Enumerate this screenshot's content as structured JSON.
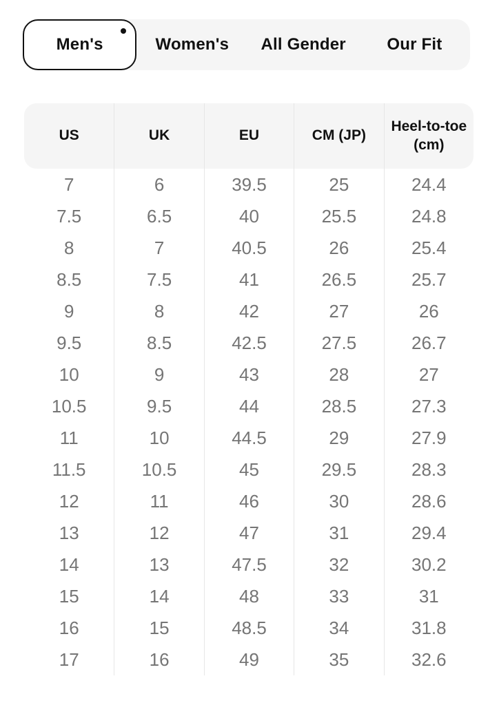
{
  "colors": {
    "background": "#ffffff",
    "panel_gray": "#f5f5f5",
    "divider": "#e6e6e6",
    "text_primary": "#111111",
    "text_body": "#757575"
  },
  "tabs": {
    "items": [
      {
        "label": "Men's",
        "selected": true
      },
      {
        "label": "Women's",
        "selected": false
      },
      {
        "label": "All Gender",
        "selected": false
      },
      {
        "label": "Our Fit",
        "selected": false
      }
    ]
  },
  "table": {
    "columns": [
      "US",
      "UK",
      "EU",
      "CM (JP)",
      "Heel-to-toe (cm)"
    ],
    "rows": [
      [
        "7",
        "6",
        "39.5",
        "25",
        "24.4"
      ],
      [
        "7.5",
        "6.5",
        "40",
        "25.5",
        "24.8"
      ],
      [
        "8",
        "7",
        "40.5",
        "26",
        "25.4"
      ],
      [
        "8.5",
        "7.5",
        "41",
        "26.5",
        "25.7"
      ],
      [
        "9",
        "8",
        "42",
        "27",
        "26"
      ],
      [
        "9.5",
        "8.5",
        "42.5",
        "27.5",
        "26.7"
      ],
      [
        "10",
        "9",
        "43",
        "28",
        "27"
      ],
      [
        "10.5",
        "9.5",
        "44",
        "28.5",
        "27.3"
      ],
      [
        "11",
        "10",
        "44.5",
        "29",
        "27.9"
      ],
      [
        "11.5",
        "10.5",
        "45",
        "29.5",
        "28.3"
      ],
      [
        "12",
        "11",
        "46",
        "30",
        "28.6"
      ],
      [
        "13",
        "12",
        "47",
        "31",
        "29.4"
      ],
      [
        "14",
        "13",
        "47.5",
        "32",
        "30.2"
      ],
      [
        "15",
        "14",
        "48",
        "33",
        "31"
      ],
      [
        "16",
        "15",
        "48.5",
        "34",
        "31.8"
      ],
      [
        "17",
        "16",
        "49",
        "35",
        "32.6"
      ]
    ]
  }
}
